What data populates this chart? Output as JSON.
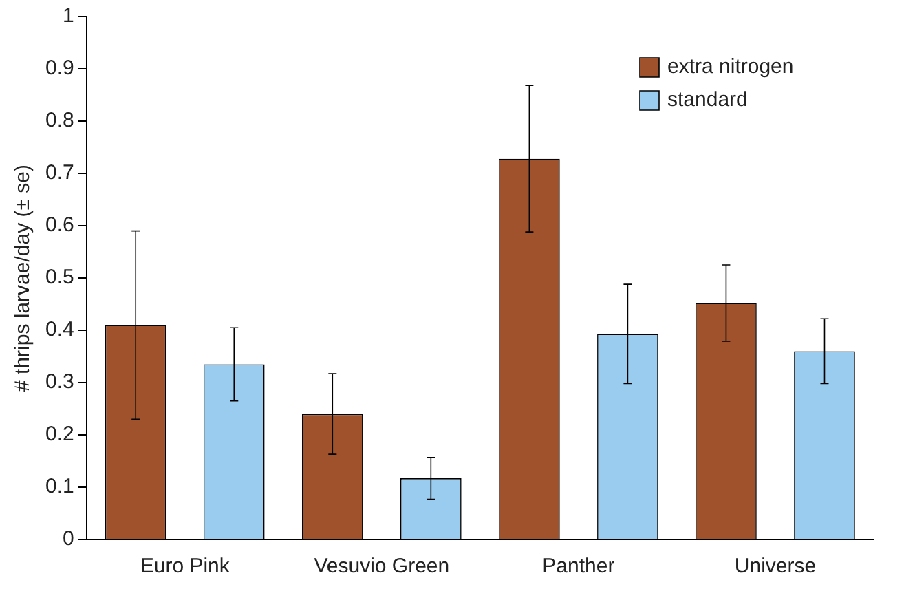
{
  "chart_data": {
    "type": "bar",
    "ylabel": "# thrips larvae/day (± se)",
    "categories": [
      "Euro Pink",
      "Vesuvio Green",
      "Panther",
      "Universe"
    ],
    "series": [
      {
        "name": "extra nitrogen",
        "color": "#a0522d",
        "values": [
          0.41,
          0.24,
          0.728,
          0.452
        ],
        "errors": [
          0.18,
          0.077,
          0.14,
          0.073
        ]
      },
      {
        "name": "standard",
        "color": "#99ccee",
        "values": [
          0.335,
          0.117,
          0.393,
          0.36
        ],
        "errors": [
          0.07,
          0.04,
          0.095,
          0.062
        ]
      }
    ],
    "ylim": [
      0,
      1
    ],
    "yticks": [
      0,
      0.1,
      0.2,
      0.3,
      0.4,
      0.5,
      0.6,
      0.7,
      0.8,
      0.9,
      1
    ],
    "grid": false,
    "legend": "top right"
  }
}
